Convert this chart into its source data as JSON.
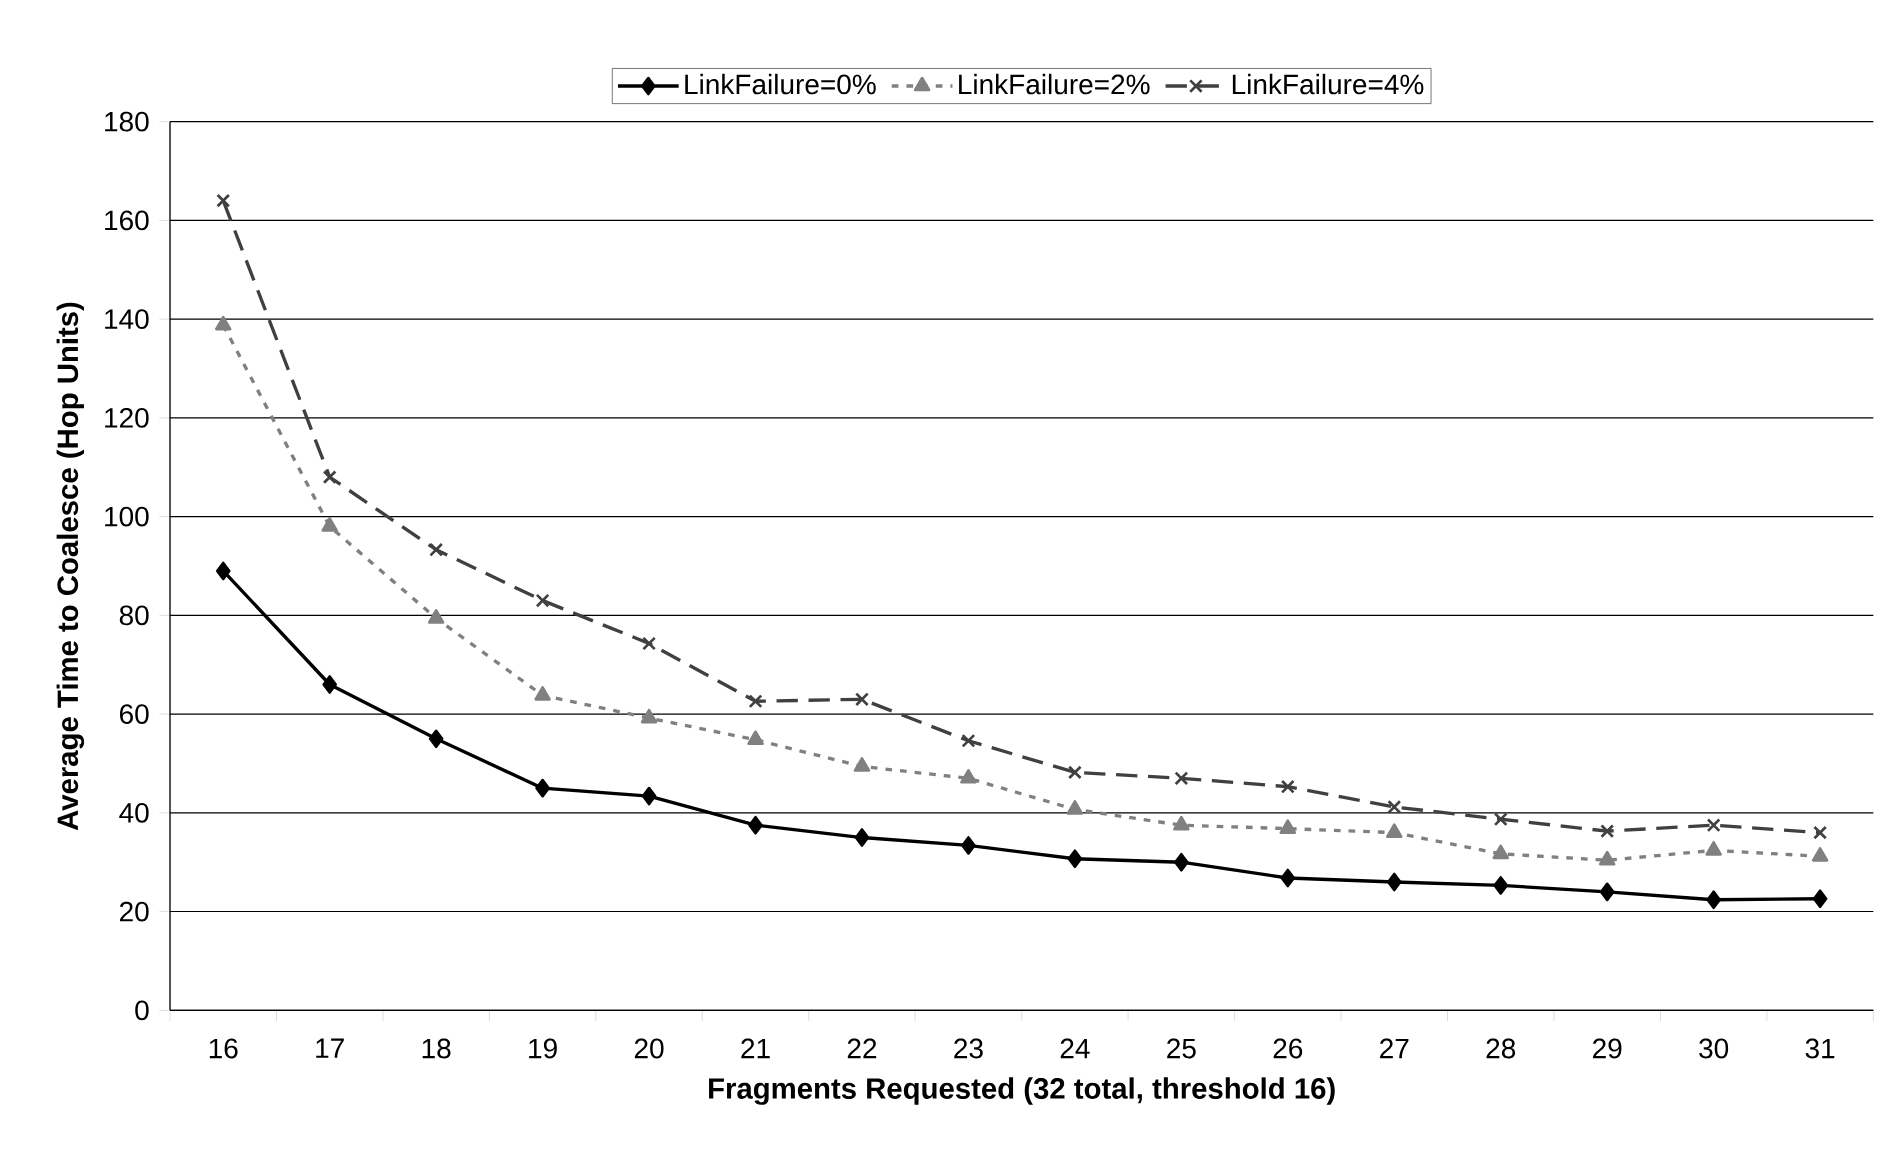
{
  "chart_data": {
    "type": "line",
    "xlabel": "Fragments Requested (32 total, threshold 16)",
    "ylabel": "Average Time to Coalesce (Hop Units)",
    "categories": [
      "16",
      "17",
      "18",
      "19",
      "20",
      "21",
      "22",
      "23",
      "24",
      "25",
      "26",
      "27",
      "28",
      "29",
      "30",
      "31"
    ],
    "series": [
      {
        "name": "LinkFailure=0%",
        "color": "#000000",
        "marker": "diamond",
        "line_style": "solid",
        "values": [
          89,
          66,
          55,
          45,
          43.4,
          37.5,
          35,
          33.4,
          30.7,
          30,
          26.8,
          26,
          25.3,
          24,
          22.4,
          22.6
        ]
      },
      {
        "name": "LinkFailure=2%",
        "color": "#808080",
        "marker": "triangle",
        "line_style": "dotted",
        "values": [
          138.8,
          98,
          79.4,
          63.8,
          59.2,
          54.8,
          49.4,
          47,
          40.7,
          37.5,
          36.8,
          36,
          31.7,
          30.4,
          32.4,
          31.2
        ]
      },
      {
        "name": "LinkFailure=4%",
        "color": "#404040",
        "marker": "cross",
        "line_style": "dashed",
        "values": [
          164,
          108,
          93.3,
          83,
          74.3,
          62.6,
          63,
          54.6,
          48.2,
          47,
          45.3,
          41.2,
          38.7,
          36.3,
          37.5,
          36
        ]
      }
    ],
    "ylim": [
      0,
      180
    ],
    "yticks": [
      0,
      20,
      40,
      60,
      80,
      100,
      120,
      140,
      160,
      180
    ],
    "grid": "y",
    "legend": "top"
  }
}
